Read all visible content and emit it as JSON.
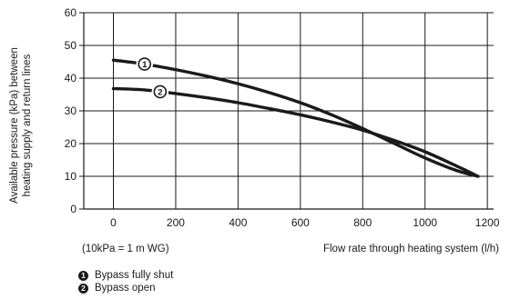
{
  "chart_data": {
    "type": "line",
    "ylabel_line1": "Available pressure (kPa) between",
    "ylabel_line2": "heating supply and return lines",
    "xlabel": "Flow rate through heating system (l/h)",
    "unit_note": "(10kPa = 1 m WG)",
    "xlim": [
      -95,
      1220
    ],
    "ylim": [
      0,
      60
    ],
    "x_ticks": [
      0,
      200,
      400,
      600,
      800,
      1000,
      1200
    ],
    "x_tick_labels": [
      "0",
      "200",
      "400",
      "600",
      "800",
      "1000",
      "1200"
    ],
    "y_ticks": [
      0,
      10,
      20,
      30,
      40,
      50,
      60
    ],
    "y_tick_labels": [
      "0",
      "10",
      "20",
      "30",
      "40",
      "50",
      "60"
    ],
    "grid": true,
    "series": [
      {
        "name": "Bypass fully shut",
        "marker": "1",
        "marker_at": 100,
        "points": [
          [
            0,
            45.5
          ],
          [
            100,
            44.3
          ],
          [
            200,
            42.6
          ],
          [
            300,
            40.6
          ],
          [
            400,
            38.3
          ],
          [
            500,
            35.6
          ],
          [
            600,
            32.5
          ],
          [
            700,
            28.8
          ],
          [
            800,
            24.6
          ],
          [
            900,
            20.1
          ],
          [
            1000,
            15.6
          ],
          [
            1100,
            11.8
          ],
          [
            1170,
            10
          ]
        ]
      },
      {
        "name": "Bypass open",
        "marker": "2",
        "marker_at": 150,
        "points": [
          [
            0,
            36.8
          ],
          [
            100,
            36.4
          ],
          [
            200,
            35.3
          ],
          [
            300,
            34
          ],
          [
            400,
            32.5
          ],
          [
            500,
            30.7
          ],
          [
            600,
            28.8
          ],
          [
            700,
            26.6
          ],
          [
            800,
            24.1
          ],
          [
            900,
            21
          ],
          [
            1000,
            17.5
          ],
          [
            1100,
            13.2
          ],
          [
            1170,
            10
          ]
        ]
      }
    ]
  },
  "legend": [
    {
      "marker": "1",
      "label": "Bypass fully shut"
    },
    {
      "marker": "2",
      "label": "Bypass open"
    }
  ],
  "colors": {
    "line": "#1a1a1a",
    "grid": "#1a1a1a"
  }
}
